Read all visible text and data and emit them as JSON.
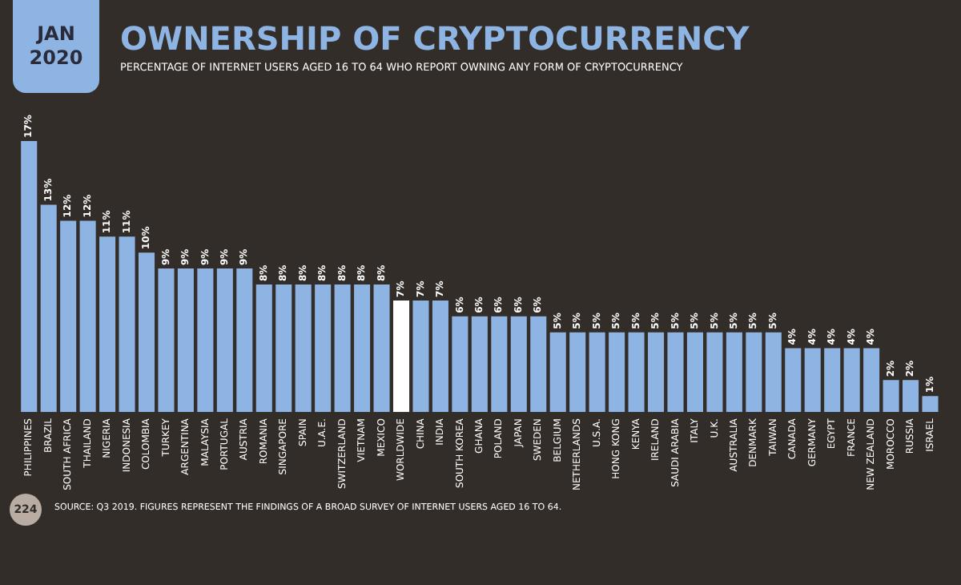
{
  "chart_data": {
    "type": "bar",
    "title": "OWNERSHIP OF CRYPTOCURRENCY",
    "subtitle": "PERCENTAGE OF INTERNET USERS AGED 16 TO 64 WHO REPORT OWNING ANY FORM OF CRYPTOCURRENCY",
    "categories": [
      "PHILIPPINES",
      "BRAZIL",
      "SOUTH AFRICA",
      "THAILAND",
      "NIGERIA",
      "INDONESIA",
      "COLOMBIA",
      "TURKEY",
      "ARGENTINA",
      "MALAYSIA",
      "PORTUGAL",
      "AUSTRIA",
      "ROMANIA",
      "SINGAPORE",
      "SPAIN",
      "U.A.E.",
      "SWITZERLAND",
      "VIETNAM",
      "MEXICO",
      "WORLDWIDE",
      "CHINA",
      "INDIA",
      "SOUTH KOREA",
      "GHANA",
      "POLAND",
      "JAPAN",
      "SWEDEN",
      "BELGIUM",
      "NETHERLANDS",
      "U.S.A.",
      "HONG KONG",
      "KENYA",
      "IRELAND",
      "SAUDI ARABIA",
      "ITALY",
      "U.K.",
      "AUSTRALIA",
      "DENMARK",
      "TAIWAN",
      "CANADA",
      "GERMANY",
      "EGYPT",
      "FRANCE",
      "NEW ZEALAND",
      "MOROCCO",
      "RUSSIA",
      "ISRAEL"
    ],
    "values": [
      17,
      13,
      12,
      12,
      11,
      11,
      10,
      9,
      9,
      9,
      9,
      9,
      8,
      8,
      8,
      8,
      8,
      8,
      8,
      7,
      7,
      7,
      6,
      6,
      6,
      6,
      6,
      5,
      5,
      5,
      5,
      5,
      5,
      5,
      5,
      5,
      5,
      5,
      5,
      4,
      4,
      4,
      4,
      4,
      2,
      2,
      1
    ],
    "value_labels": [
      "17%",
      "13%",
      "12%",
      "12%",
      "11%",
      "11%",
      "10%",
      "9%",
      "9%",
      "9%",
      "9%",
      "9%",
      "8%",
      "8%",
      "8%",
      "8%",
      "8%",
      "8%",
      "8%",
      "7%",
      "7%",
      "7%",
      "6%",
      "6%",
      "6%",
      "6%",
      "6%",
      "5%",
      "5%",
      "5%",
      "5%",
      "5%",
      "5%",
      "5%",
      "5%",
      "5%",
      "5%",
      "5%",
      "5%",
      "4%",
      "4%",
      "4%",
      "4%",
      "4%",
      "2%",
      "2%",
      "1%"
    ],
    "colors": [
      "#8db4e2",
      "#8db4e2",
      "#8db4e2",
      "#8db4e2",
      "#8db4e2",
      "#8db4e2",
      "#8db4e2",
      "#8db4e2",
      "#8db4e2",
      "#8db4e2",
      "#8db4e2",
      "#8db4e2",
      "#8db4e2",
      "#8db4e2",
      "#8db4e2",
      "#8db4e2",
      "#8db4e2",
      "#8db4e2",
      "#8db4e2",
      "#ffffff",
      "#8db4e2",
      "#8db4e2",
      "#8db4e2",
      "#8db4e2",
      "#8db4e2",
      "#8db4e2",
      "#8db4e2",
      "#8db4e2",
      "#8db4e2",
      "#8db4e2",
      "#8db4e2",
      "#8db4e2",
      "#8db4e2",
      "#8db4e2",
      "#8db4e2",
      "#8db4e2",
      "#8db4e2",
      "#8db4e2",
      "#8db4e2",
      "#8db4e2",
      "#8db4e2",
      "#8db4e2",
      "#8db4e2",
      "#8db4e2",
      "#8db4e2",
      "#8db4e2",
      "#8db4e2"
    ],
    "annotations": [
      "JAN 2020",
      "224",
      "SOURCE: Q3 2019. FIGURES REPRESENT THE FINDINGS OF A BROAD SURVEY OF INTERNET USERS AGED 16 TO 64."
    ],
    "grid": false,
    "legend": false
  }
}
